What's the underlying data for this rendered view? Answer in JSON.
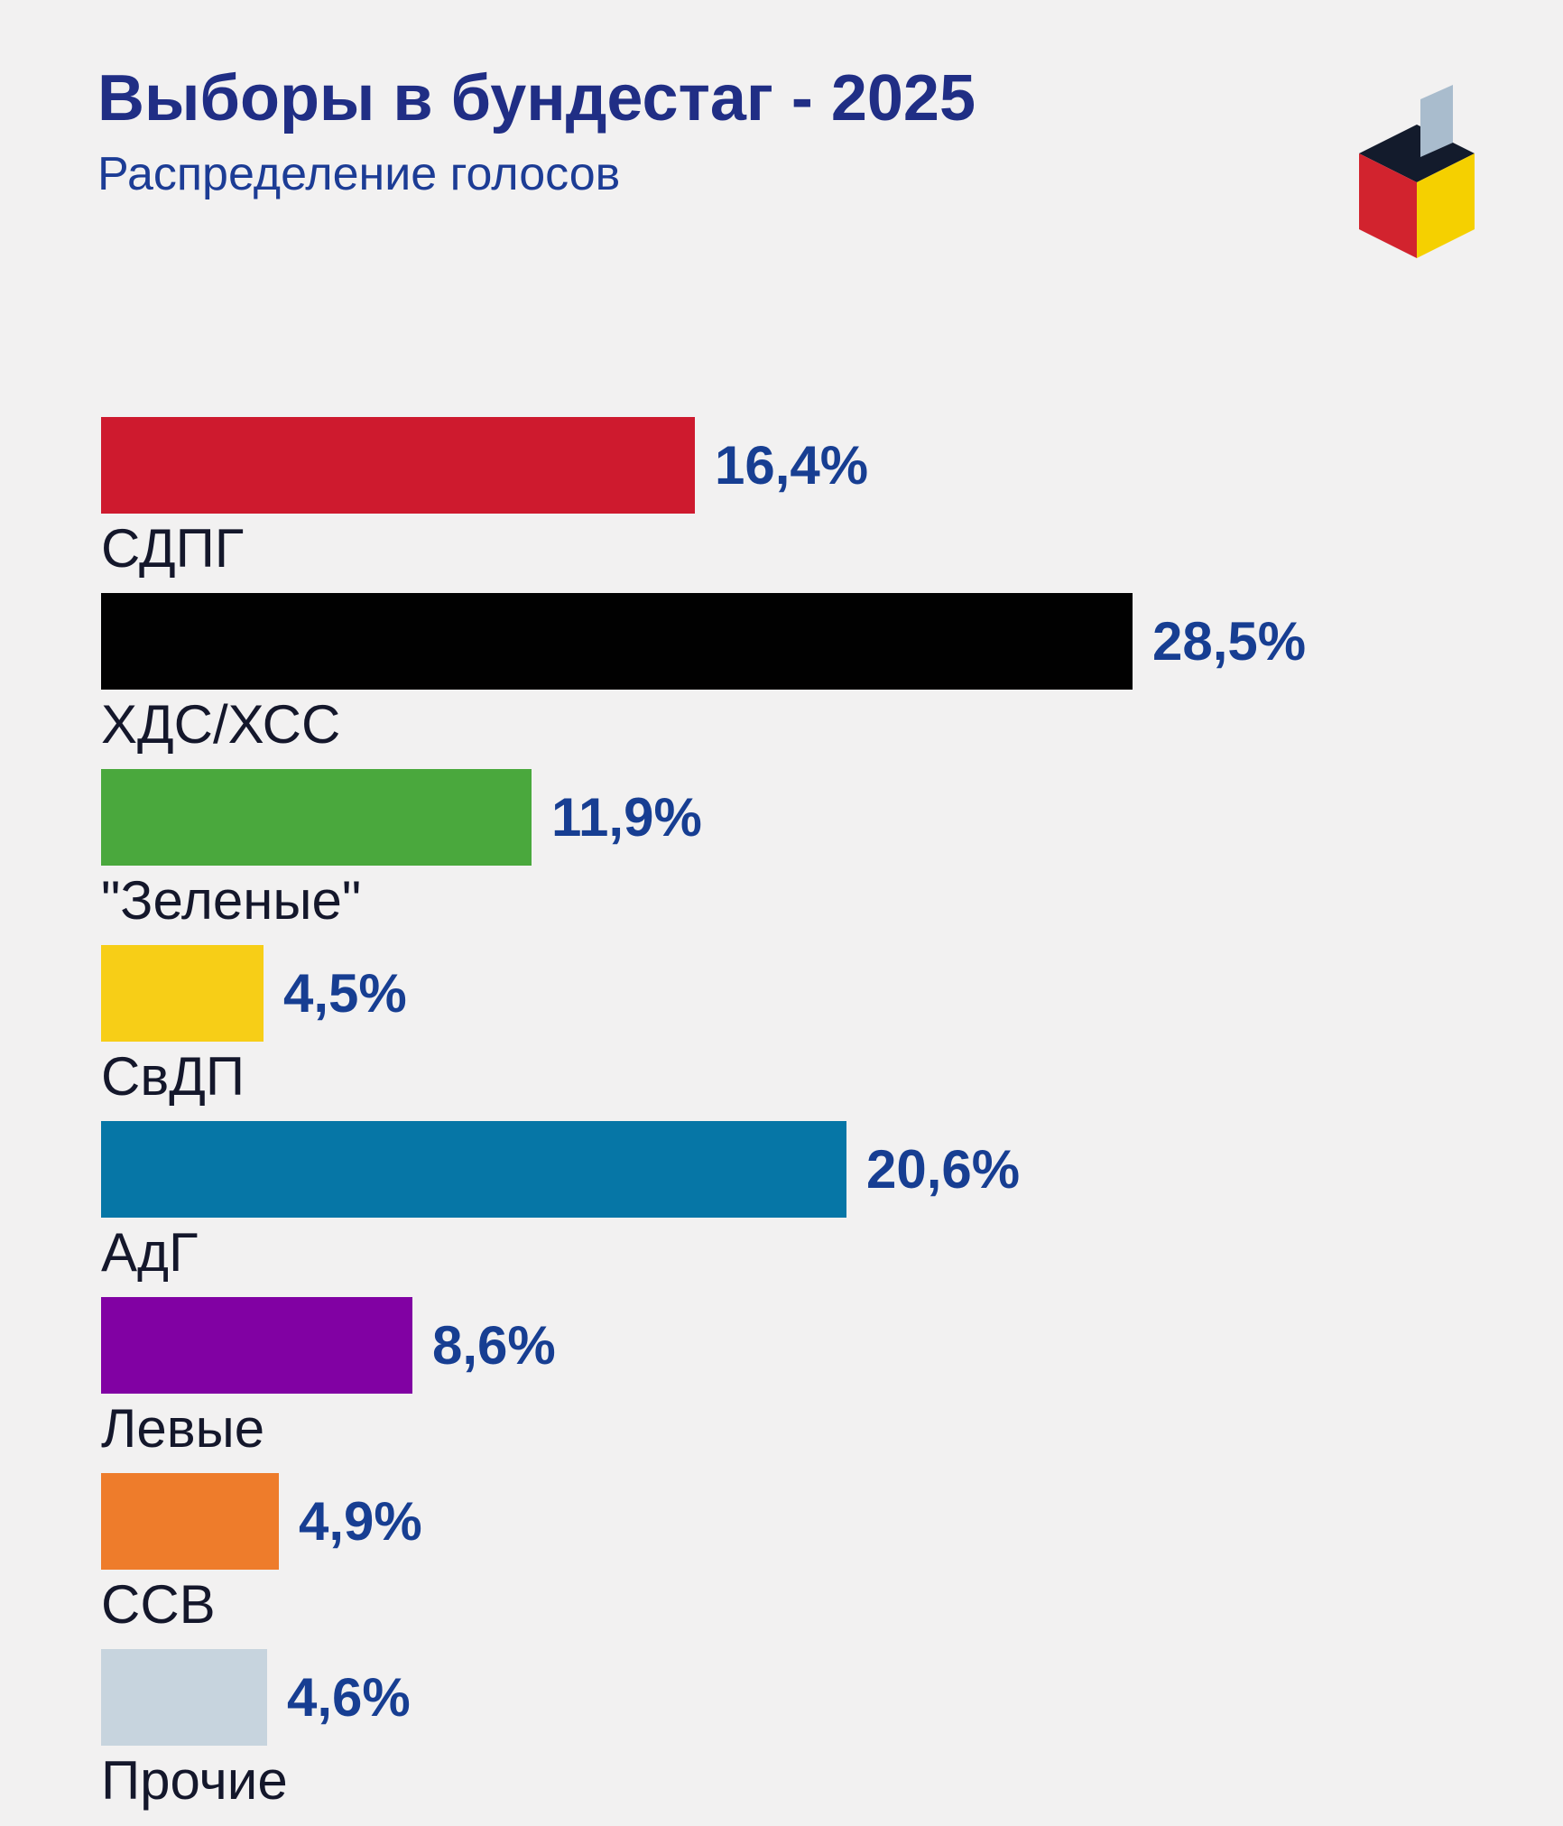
{
  "header": {
    "title": "Выборы в бундестаг - 2025",
    "subtitle": "Распределение голосов"
  },
  "logo": {
    "description": "isometric ballot box with ballot paper",
    "colors": {
      "top": "#131b2c",
      "left": "#d2232e",
      "right": "#f5d000",
      "ballot": "#a9bccd"
    }
  },
  "colors": {
    "background": "#f2f1f1",
    "title": "#202e85",
    "subtitle": "#1c3c95",
    "value": "#173e92",
    "label": "#14172b"
  },
  "chart_data": {
    "type": "bar",
    "orientation": "horizontal",
    "title": "Выборы в бундестаг - 2025",
    "subtitle": "Распределение голосов",
    "categories": [
      "СДПГ",
      "ХДС/ХСС",
      "\"Зеленые\"",
      "СвДП",
      "АдГ",
      "Левые",
      "ССВ",
      "Прочие"
    ],
    "values": [
      16.4,
      28.5,
      11.9,
      4.5,
      20.6,
      8.6,
      4.9,
      4.6
    ],
    "value_labels": [
      "16,4%",
      "28,5%",
      "11,9%",
      "4,5%",
      "20,6%",
      "8,6%",
      "4,9%",
      "4,6%"
    ],
    "bar_colors": [
      "#ce1a2e",
      "#010101",
      "#4aa83d",
      "#f7ce17",
      "#0676a6",
      "#8101a3",
      "#ee7c2b",
      "#c7d4de"
    ],
    "max_value": 28.5,
    "value_position": "right-of-bar",
    "category_position": "below-bar",
    "grid": false,
    "legend": false
  }
}
